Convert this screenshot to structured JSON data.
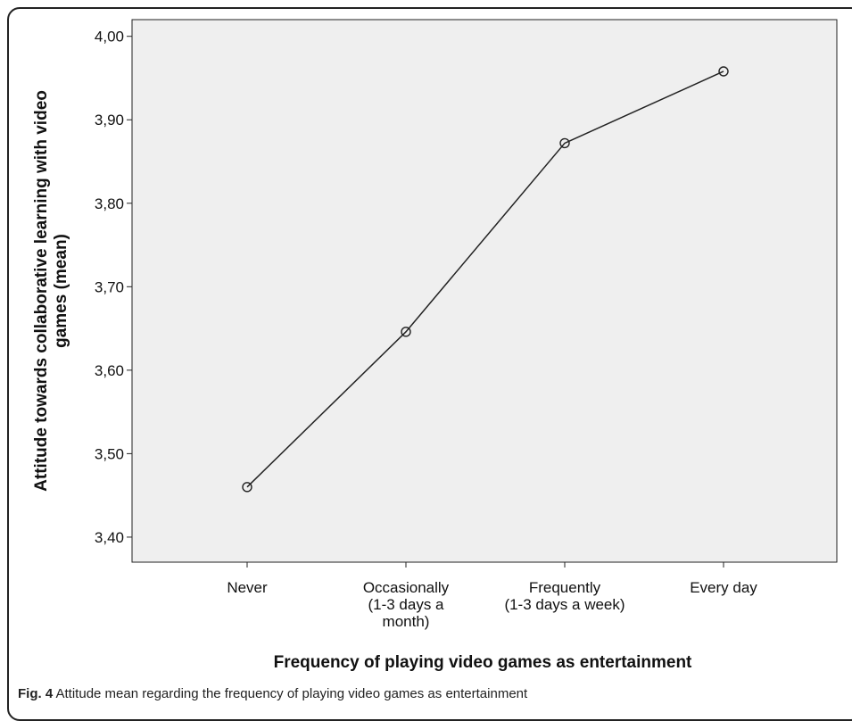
{
  "chart_data": {
    "type": "line",
    "categories": [
      [
        "Never"
      ],
      [
        "Occasionally",
        "(1-3 days a",
        "month)"
      ],
      [
        "Frequently",
        "(1-3 days a week)"
      ],
      [
        "Every day"
      ]
    ],
    "values": [
      3.46,
      3.646,
      3.872,
      3.958
    ],
    "ylim": [
      3.37,
      4.02
    ],
    "yticks": [
      "3,40",
      "3,50",
      "3,60",
      "3,70",
      "3,80",
      "3,90",
      "4,00"
    ],
    "ytick_values": [
      3.4,
      3.5,
      3.6,
      3.7,
      3.8,
      3.9,
      4.0
    ],
    "ylabel_lines": [
      "Attitude towards collaborative learning with video",
      "games (mean)"
    ],
    "xlabel": "Frequency of playing video games as entertainment",
    "grid": false,
    "marker": "open-circle",
    "colors": {
      "plot_background": "#efefef",
      "line": "#222222",
      "frame": "#222222"
    }
  },
  "caption": {
    "label": "Fig. 4",
    "text": " Attitude mean regarding the frequency of playing video games as entertainment"
  }
}
